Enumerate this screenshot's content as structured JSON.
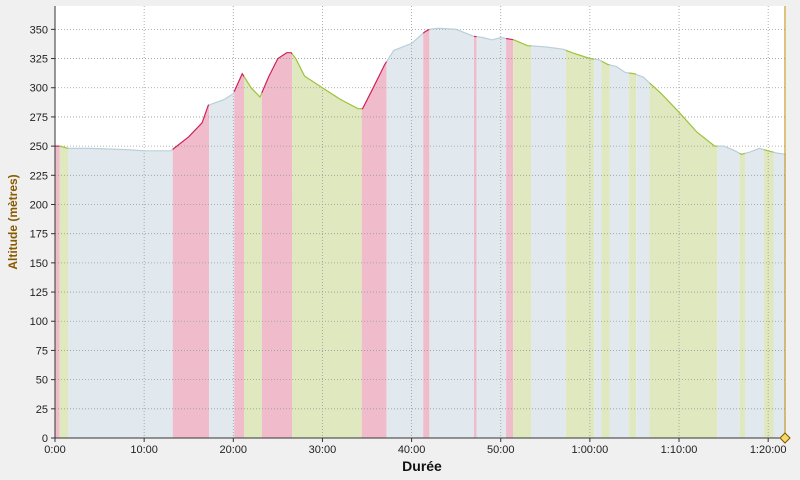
{
  "chart_data": {
    "type": "area",
    "xlabel": "Durée",
    "ylabel": "Altitude (mètres)",
    "xlim": [
      0,
      82
    ],
    "ylim": [
      0,
      370
    ],
    "grid": true,
    "x_ticks": [
      0,
      10,
      20,
      30,
      40,
      50,
      60,
      70,
      80
    ],
    "x_tick_labels": [
      "0:00",
      "10:00",
      "20:00",
      "30:00",
      "40:00",
      "50:00",
      "1:00:00",
      "1:10:00",
      "1:20:00"
    ],
    "y_ticks": [
      0,
      25,
      50,
      75,
      100,
      125,
      150,
      175,
      200,
      225,
      250,
      275,
      300,
      325,
      350
    ],
    "y_tick_labels": [
      "0",
      "25",
      "50",
      "75",
      "100",
      "125",
      "150",
      "175",
      "200",
      "225",
      "250",
      "275",
      "300",
      "325",
      "350"
    ],
    "colors": {
      "climb": "#f0bccc",
      "flat": "#e2e9ee",
      "descent": "#dfe8bf",
      "climb_line": "#d0205a",
      "flat_line": "#b9cfdb",
      "descent_line": "#9ec23a",
      "grid": "#9a9a9a",
      "axis_title": "#8a5a00",
      "cursor": "#c89a2a"
    },
    "x": [
      0,
      0.5,
      1.5,
      4,
      8,
      10,
      13,
      15,
      16.5,
      17.2,
      19,
      20,
      21,
      22,
      23,
      24,
      25,
      26,
      26.5,
      27,
      28,
      30,
      32,
      34,
      34.5,
      35.5,
      37,
      38,
      40,
      41.5,
      42,
      43,
      45,
      47,
      48,
      49,
      50,
      51.5,
      53,
      55,
      57,
      58,
      60,
      61,
      62,
      63,
      64,
      65,
      66,
      68,
      70,
      72,
      74,
      75,
      76,
      77,
      78,
      79,
      80,
      81,
      82
    ],
    "y": [
      250,
      250,
      248,
      248,
      247,
      246,
      246,
      258,
      270,
      285,
      290,
      295,
      312,
      300,
      292,
      310,
      325,
      330,
      330,
      325,
      310,
      300,
      290,
      282,
      282,
      297,
      320,
      332,
      338,
      348,
      350,
      351,
      350,
      344,
      343,
      341,
      343,
      341,
      336,
      335,
      333,
      330,
      325,
      324,
      320,
      318,
      313,
      312,
      309,
      295,
      279,
      262,
      250,
      250,
      247,
      243,
      245,
      248,
      246,
      244,
      243
    ],
    "segments": [
      {
        "start": 0,
        "end": 0.5,
        "type": "climb"
      },
      {
        "start": 0.5,
        "end": 1.5,
        "type": "descent"
      },
      {
        "start": 1.5,
        "end": 13.2,
        "type": "flat"
      },
      {
        "start": 13.2,
        "end": 17.3,
        "type": "climb"
      },
      {
        "start": 17.3,
        "end": 20.1,
        "type": "flat"
      },
      {
        "start": 20.1,
        "end": 21.2,
        "type": "climb"
      },
      {
        "start": 21.2,
        "end": 23.2,
        "type": "descent"
      },
      {
        "start": 23.2,
        "end": 26.6,
        "type": "climb"
      },
      {
        "start": 26.6,
        "end": 34.4,
        "type": "descent"
      },
      {
        "start": 34.4,
        "end": 37.2,
        "type": "climb"
      },
      {
        "start": 37.2,
        "end": 41.3,
        "type": "flat"
      },
      {
        "start": 41.3,
        "end": 42.0,
        "type": "climb"
      },
      {
        "start": 42.0,
        "end": 47.0,
        "type": "flat"
      },
      {
        "start": 47.0,
        "end": 47.3,
        "type": "climb"
      },
      {
        "start": 47.3,
        "end": 50.6,
        "type": "flat"
      },
      {
        "start": 50.6,
        "end": 51.4,
        "type": "climb"
      },
      {
        "start": 51.4,
        "end": 53.4,
        "type": "descent"
      },
      {
        "start": 53.4,
        "end": 57.3,
        "type": "flat"
      },
      {
        "start": 57.3,
        "end": 60.5,
        "type": "descent"
      },
      {
        "start": 60.5,
        "end": 61.3,
        "type": "flat"
      },
      {
        "start": 61.3,
        "end": 62.2,
        "type": "descent"
      },
      {
        "start": 62.2,
        "end": 64.4,
        "type": "flat"
      },
      {
        "start": 64.4,
        "end": 65.2,
        "type": "descent"
      },
      {
        "start": 65.2,
        "end": 66.7,
        "type": "flat"
      },
      {
        "start": 66.7,
        "end": 74.3,
        "type": "descent"
      },
      {
        "start": 74.3,
        "end": 76.8,
        "type": "flat"
      },
      {
        "start": 76.8,
        "end": 77.4,
        "type": "descent"
      },
      {
        "start": 77.4,
        "end": 79.5,
        "type": "flat"
      },
      {
        "start": 79.5,
        "end": 80.6,
        "type": "descent"
      },
      {
        "start": 80.6,
        "end": 82,
        "type": "flat"
      }
    ],
    "cursor_x": 82
  }
}
